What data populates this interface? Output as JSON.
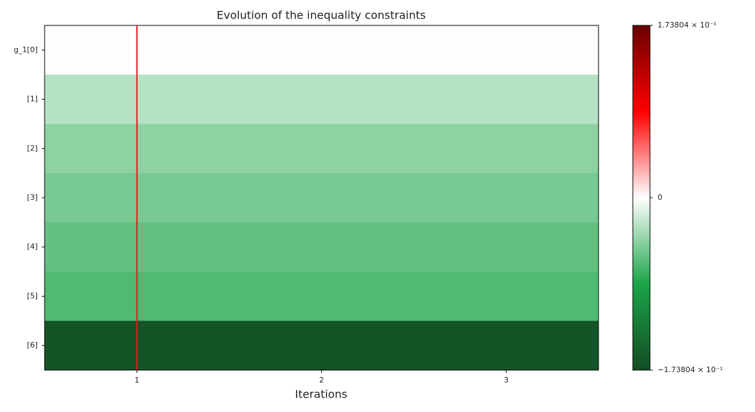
{
  "chart_data": {
    "type": "heatmap",
    "title": "Evolution of the inequality constraints",
    "x_label": "Iterations",
    "x": [
      1,
      2,
      3
    ],
    "xlim": [
      0.5,
      3.5
    ],
    "xticks": [
      1,
      2,
      3
    ],
    "rows": [
      "g_1[0]",
      "[1]",
      "[2]",
      "[3]",
      "[4]",
      "[5]",
      "[6]"
    ],
    "values": [
      [
        0.001,
        0.001,
        0.001
      ],
      [
        -0.028,
        -0.028,
        -0.028
      ],
      [
        -0.0435,
        -0.0435,
        -0.0435
      ],
      [
        -0.052,
        -0.052,
        -0.052
      ],
      [
        -0.06,
        -0.06,
        -0.06
      ],
      [
        -0.067,
        -0.067,
        -0.067
      ],
      [
        -0.166,
        -0.166,
        -0.166
      ]
    ],
    "colormap": [
      "#134d24",
      "#1ba548",
      "#ffffff",
      "#ff0000",
      "#6b0000"
    ],
    "clim": [
      -0.173804,
      0.173804
    ],
    "cticks": [
      {
        "value": 0.173804,
        "label": "1.73804 × 10⁻¹"
      },
      0,
      {
        "value": -0.173804,
        "label": "−1.73804 × 10⁻¹"
      }
    ],
    "vline": {
      "x": 1,
      "color": "#e41a1c"
    }
  }
}
